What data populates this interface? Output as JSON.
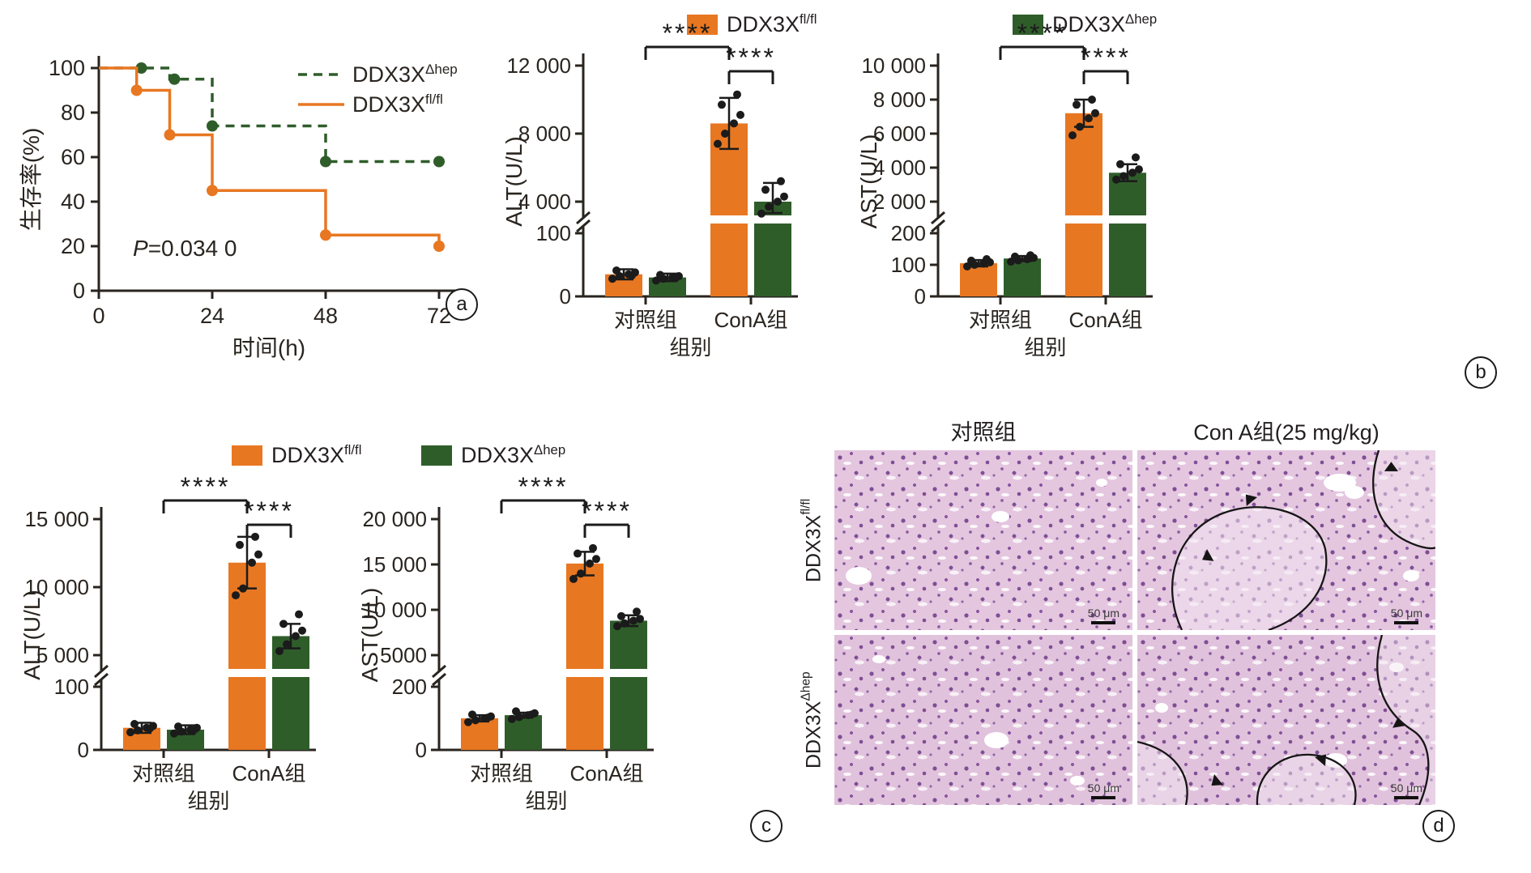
{
  "colors": {
    "orange": "#E87722",
    "green": "#2F5D2A",
    "dot": "#1b1b1b",
    "axis": "#29241f"
  },
  "panel_labels": {
    "a": "a",
    "b": "b",
    "c": "c",
    "d": "d"
  },
  "legend_bars": [
    {
      "base": "DDX3X",
      "sup": "fl/fl",
      "color": "#E87722"
    },
    {
      "base": "DDX3X",
      "sup": "Δhep",
      "color": "#2F5D2A"
    }
  ],
  "chart_data": [
    {
      "id": "km",
      "type": "survival-step",
      "title": "",
      "ylabel": "生存率(%)",
      "xlabel": "时间(h)",
      "xticks": [
        0,
        24,
        48,
        72
      ],
      "yticks": [
        0,
        20,
        40,
        60,
        80,
        100
      ],
      "xlim": [
        0,
        72
      ],
      "ylim": [
        0,
        100
      ],
      "p_italic": "P",
      "p_rest": "=0.034 0",
      "legend_position": "top-right",
      "grid": false,
      "series": [
        {
          "base": "DDX3X",
          "sup": "Δhep",
          "color_key": "green",
          "dash": true,
          "steps": [
            [
              0,
              100
            ],
            [
              15,
              100
            ],
            [
              15,
              95
            ],
            [
              24,
              95
            ],
            [
              24,
              74
            ],
            [
              48,
              74
            ],
            [
              48,
              58
            ],
            [
              72,
              58
            ]
          ],
          "markers": [
            [
              9,
              100
            ],
            [
              16,
              95
            ],
            [
              24,
              74
            ],
            [
              48,
              58
            ],
            [
              72,
              58
            ]
          ]
        },
        {
          "base": "DDX3X",
          "sup": "fl/fl",
          "color_key": "orange",
          "dash": false,
          "steps": [
            [
              0,
              100
            ],
            [
              8,
              100
            ],
            [
              8,
              90
            ],
            [
              15,
              90
            ],
            [
              15,
              70
            ],
            [
              24,
              70
            ],
            [
              24,
              45
            ],
            [
              48,
              45
            ],
            [
              48,
              25
            ],
            [
              72,
              25
            ],
            [
              72,
              20
            ]
          ],
          "markers": [
            [
              8,
              90
            ],
            [
              15,
              70
            ],
            [
              24,
              45
            ],
            [
              48,
              25
            ],
            [
              72,
              20
            ]
          ]
        }
      ]
    },
    {
      "id": "alt_b",
      "type": "bar-broken-axis",
      "ylabel": "ALT(U/L)",
      "xlabel": "组别",
      "groups": [
        "对照组",
        "ConA组"
      ],
      "lower_max": 100,
      "lower_ticks": [
        {
          "v": 0,
          "label": "0"
        },
        {
          "v": 100,
          "label": "100"
        }
      ],
      "upper_ticks": [
        {
          "v": 4000,
          "label": "4 000"
        },
        {
          "v": 8000,
          "label": "8 000"
        },
        {
          "v": 12000,
          "label": "12 000"
        }
      ],
      "series": [
        {
          "name": "DDX3Xfl/fl",
          "color_key": "orange",
          "values": [
            35,
            8600
          ],
          "err": [
            8,
            1500
          ],
          "points": [
            [
              28,
              32,
              35,
              38,
              41,
              33
            ],
            [
              7400,
              8000,
              8600,
              9100,
              9700,
              10300
            ]
          ]
        },
        {
          "name": "DDX3XΔhep",
          "color_key": "green",
          "values": [
            30,
            4000
          ],
          "err": [
            6,
            1100
          ],
          "points": [
            [
              25,
              28,
              30,
              32,
              34,
              29
            ],
            [
              3300,
              3700,
              4000,
              4300,
              4700,
              5200
            ]
          ]
        }
      ],
      "sig": [
        {
          "a": -1,
          "b": 2,
          "level": 0,
          "label": "****"
        },
        {
          "a": 2,
          "b": 3,
          "level": 1,
          "label": "****"
        }
      ]
    },
    {
      "id": "ast_b",
      "type": "bar-broken-axis",
      "ylabel": "AST(U/L)",
      "xlabel": "组别",
      "groups": [
        "对照组",
        "ConA组"
      ],
      "lower_max": 200,
      "lower_ticks": [
        {
          "v": 0,
          "label": "0"
        },
        {
          "v": 100,
          "label": "100"
        },
        {
          "v": 200,
          "label": "200"
        }
      ],
      "upper_ticks": [
        {
          "v": 2000,
          "label": "2 000"
        },
        {
          "v": 4000,
          "label": "4 000"
        },
        {
          "v": 6000,
          "label": "6 000"
        },
        {
          "v": 8000,
          "label": "8 000"
        },
        {
          "v": 10000,
          "label": "10 000"
        }
      ],
      "series": [
        {
          "name": "DDX3Xfl/fl",
          "color_key": "orange",
          "values": [
            105,
            7200
          ],
          "err": [
            10,
            800
          ],
          "points": [
            [
              95,
              100,
              104,
              108,
              113,
              118
            ],
            [
              5900,
              6400,
              6900,
              7200,
              7700,
              8000
            ]
          ]
        },
        {
          "name": "DDX3XΔhep",
          "color_key": "green",
          "values": [
            120,
            3700
          ],
          "err": [
            8,
            500
          ],
          "points": [
            [
              110,
              114,
              118,
              122,
              126,
              130
            ],
            [
              3300,
              3500,
              3700,
              3900,
              4200,
              4600
            ]
          ]
        }
      ],
      "sig": [
        {
          "a": -1,
          "b": 2,
          "level": 0,
          "label": "****"
        },
        {
          "a": 2,
          "b": 3,
          "level": 1,
          "label": "****"
        }
      ]
    },
    {
      "id": "alt_c",
      "type": "bar-broken-axis",
      "ylabel": "ALT(U/L)",
      "xlabel": "组别",
      "groups": [
        "对照组",
        "ConA组"
      ],
      "lower_max": 100,
      "lower_ticks": [
        {
          "v": 0,
          "label": "0"
        },
        {
          "v": 100,
          "label": "100"
        }
      ],
      "upper_ticks": [
        {
          "v": 5000,
          "label": "5 000"
        },
        {
          "v": 10000,
          "label": "10 000"
        },
        {
          "v": 15000,
          "label": "15 000"
        }
      ],
      "series": [
        {
          "name": "DDX3Xfl/fl",
          "color_key": "orange",
          "values": [
            35,
            11800
          ],
          "err": [
            8,
            1900
          ],
          "points": [
            [
              28,
              31,
              35,
              38,
              41,
              34
            ],
            [
              9400,
              9900,
              11800,
              12400,
              13100,
              13700
            ]
          ]
        },
        {
          "name": "DDX3XΔhep",
          "color_key": "green",
          "values": [
            32,
            6400
          ],
          "err": [
            7,
            900
          ],
          "points": [
            [
              26,
              29,
              32,
              35,
              37,
              31
            ],
            [
              5300,
              5800,
              6400,
              6800,
              7300,
              8000
            ]
          ]
        }
      ],
      "sig": [
        {
          "a": -1,
          "b": 2,
          "level": 0,
          "label": "****"
        },
        {
          "a": 2,
          "b": 3,
          "level": 1,
          "label": "****"
        }
      ]
    },
    {
      "id": "ast_c",
      "type": "bar-broken-axis",
      "ylabel": "AST(U/L)",
      "xlabel": "组别",
      "groups": [
        "对照组",
        "ConA组"
      ],
      "lower_max": 200,
      "lower_ticks": [
        {
          "v": 0,
          "label": "0"
        },
        {
          "v": 200,
          "label": "200"
        }
      ],
      "upper_ticks": [
        {
          "v": 5000,
          "label": "5000"
        },
        {
          "v": 10000,
          "label": "10 000"
        },
        {
          "v": 15000,
          "label": "15 000"
        },
        {
          "v": 20000,
          "label": "20 000"
        }
      ],
      "series": [
        {
          "name": "DDX3Xfl/fl",
          "color_key": "orange",
          "values": [
            100,
            15100
          ],
          "err": [
            10,
            1300
          ],
          "points": [
            [
              88,
              94,
              100,
              106,
              112,
              102
            ],
            [
              13400,
              14000,
              15100,
              15600,
              16200,
              16800
            ]
          ]
        },
        {
          "name": "DDX3XΔhep",
          "color_key": "green",
          "values": [
            110,
            8800
          ],
          "err": [
            8,
            600
          ],
          "points": [
            [
              98,
              104,
              110,
              116,
              122,
              112
            ],
            [
              8200,
              8500,
              8800,
              9000,
              9300,
              9800
            ]
          ]
        }
      ],
      "sig": [
        {
          "a": -1,
          "b": 2,
          "level": 0,
          "label": "****"
        },
        {
          "a": 2,
          "b": 3,
          "level": 1,
          "label": "****"
        }
      ]
    }
  ],
  "histology": {
    "col_titles": [
      "对照组",
      "Con A组(25 mg/kg)"
    ],
    "row_labels": [
      {
        "base": "DDX3X",
        "sup": "fl/fl"
      },
      {
        "base": "DDX3X",
        "sup": "Δhep"
      }
    ],
    "scale_bar": "50 μm"
  }
}
